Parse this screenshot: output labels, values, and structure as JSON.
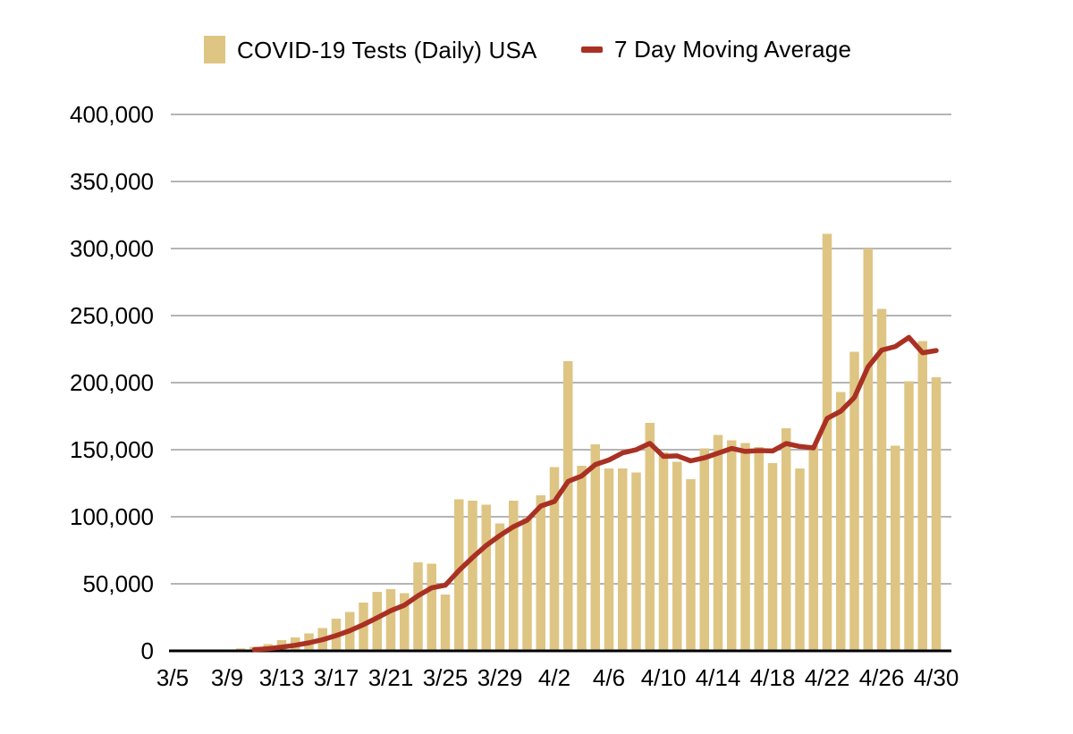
{
  "legend": {
    "bars_label": "COVID-19 Tests (Daily) USA",
    "line_label": "7 Day Moving Average"
  },
  "colors": {
    "bar": "#DEC583",
    "line": "#A93123",
    "gridline": "#B5B5B5",
    "axis": "#000000",
    "text": "#000000",
    "background": "#FFFFFF"
  },
  "chart_data": {
    "type": "bar",
    "title": "",
    "xlabel": "",
    "ylabel": "",
    "ylim": [
      0,
      400000
    ],
    "grid": "horizontal",
    "legend_position": "top",
    "y_tick_values": [
      0,
      50000,
      100000,
      150000,
      200000,
      250000,
      300000,
      350000,
      400000
    ],
    "y_tick_labels": [
      "0",
      "50,000",
      "100,000",
      "150,000",
      "200,000",
      "250,000",
      "300,000",
      "350,000",
      "400,000"
    ],
    "x_tick_labels": [
      "3/5",
      "3/9",
      "3/13",
      "3/17",
      "3/21",
      "3/25",
      "3/29",
      "4/2",
      "4/6",
      "4/10",
      "4/14",
      "4/18",
      "4/22",
      "4/26",
      "4/30"
    ],
    "x_tick_every": 4,
    "categories": [
      "3/5",
      "3/6",
      "3/7",
      "3/8",
      "3/9",
      "3/10",
      "3/11",
      "3/12",
      "3/13",
      "3/14",
      "3/15",
      "3/16",
      "3/17",
      "3/18",
      "3/19",
      "3/20",
      "3/21",
      "3/22",
      "3/23",
      "3/24",
      "3/25",
      "3/26",
      "3/27",
      "3/28",
      "3/29",
      "3/30",
      "3/31",
      "4/1",
      "4/2",
      "4/3",
      "4/4",
      "4/5",
      "4/6",
      "4/7",
      "4/8",
      "4/9",
      "4/10",
      "4/11",
      "4/12",
      "4/13",
      "4/14",
      "4/15",
      "4/16",
      "4/17",
      "4/18",
      "4/19",
      "4/20",
      "4/21",
      "4/22",
      "4/23",
      "4/24",
      "4/25",
      "4/26",
      "4/27",
      "4/28",
      "4/29",
      "4/30"
    ],
    "series": [
      {
        "name": "COVID-19 Tests (Daily) USA",
        "type": "bar",
        "values": [
          0,
          0,
          0,
          500,
          1000,
          1800,
          3000,
          5000,
          8000,
          10000,
          13000,
          17000,
          24000,
          29000,
          36000,
          44000,
          46000,
          43000,
          66000,
          65000,
          42000,
          113000,
          112000,
          109000,
          95000,
          112000,
          99000,
          116000,
          137000,
          216000,
          138000,
          154000,
          136000,
          136000,
          133000,
          170000,
          148000,
          141000,
          128000,
          151000,
          161000,
          157000,
          155000,
          152000,
          140000,
          166000,
          136000,
          153000,
          311000,
          193000,
          223000,
          300000,
          255000,
          153000,
          201000,
          231000,
          204000
        ]
      },
      {
        "name": "7 Day Moving Average",
        "type": "line",
        "start_index": 6,
        "values": [
          900,
          1600,
          2800,
          4200,
          6000,
          8300,
          11400,
          15100,
          19600,
          24700,
          29900,
          34100,
          41100,
          47000,
          48900,
          59900,
          69600,
          78600,
          86000,
          92600,
          97400,
          108000,
          111400,
          126300,
          130400,
          138900,
          142300,
          147600,
          150000,
          154700,
          145000,
          145400,
          141700,
          143900,
          147400,
          150900,
          148700,
          149300,
          149100,
          154600,
          152400,
          151300,
          173300,
          178700,
          188900,
          211700,
          224300,
          226900,
          233700,
          222300,
          223900
        ]
      }
    ]
  },
  "layout_note": ""
}
